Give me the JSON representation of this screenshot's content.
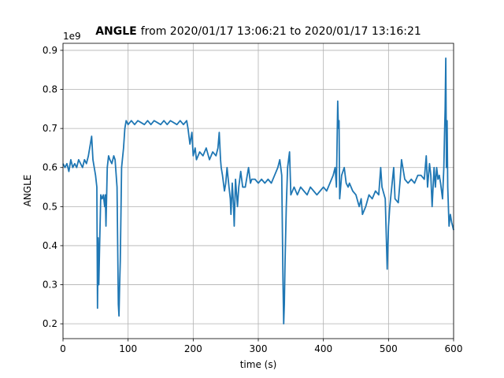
{
  "chart_data": {
    "type": "line",
    "title": {
      "bold": "ANGLE",
      "text": "from 2020/01/17 13:06:21 to 2020/01/17 13:16:21"
    },
    "offset_label": "1e9",
    "xlabel": "time (s)",
    "ylabel": "ANGLE",
    "xlim": [
      0,
      600
    ],
    "xticks": [
      0,
      100,
      200,
      300,
      400,
      500,
      600
    ],
    "ylim": [
      0.162,
      0.918
    ],
    "yticks": [
      0.2,
      0.3,
      0.4,
      0.5,
      0.6,
      0.7,
      0.8,
      0.9
    ],
    "grid": true,
    "x": [
      0,
      3,
      6,
      9,
      12,
      15,
      18,
      21,
      24,
      27,
      30,
      33,
      36,
      39,
      42,
      44,
      46,
      48,
      50,
      52,
      53,
      54,
      55,
      56,
      58,
      60,
      62,
      64,
      65,
      66,
      68,
      70,
      72,
      75,
      78,
      80,
      83,
      85,
      86,
      87,
      88,
      90,
      93,
      95,
      97,
      100,
      105,
      110,
      115,
      120,
      125,
      130,
      135,
      140,
      145,
      150,
      155,
      160,
      165,
      170,
      175,
      180,
      185,
      190,
      192,
      195,
      198,
      200,
      203,
      205,
      210,
      215,
      220,
      225,
      230,
      235,
      238,
      240,
      242,
      243,
      245,
      248,
      250,
      252,
      255,
      257,
      258,
      260,
      262,
      263,
      265,
      268,
      270,
      273,
      276,
      280,
      285,
      288,
      290,
      295,
      300,
      305,
      310,
      315,
      320,
      325,
      330,
      333,
      336,
      338,
      339,
      340,
      341,
      343,
      345,
      348,
      350,
      355,
      360,
      365,
      370,
      375,
      380,
      385,
      390,
      395,
      400,
      405,
      410,
      415,
      418,
      420,
      422,
      423,
      424,
      425,
      428,
      432,
      435,
      438,
      440,
      445,
      450,
      455,
      458,
      460,
      465,
      470,
      475,
      480,
      485,
      488,
      490,
      495,
      497,
      498,
      500,
      502,
      505,
      508,
      510,
      515,
      518,
      520,
      525,
      530,
      535,
      540,
      545,
      550,
      555,
      558,
      560,
      563,
      565,
      567,
      570,
      572,
      574,
      576,
      578,
      580,
      583,
      585,
      586,
      587,
      588,
      589,
      590,
      591,
      593,
      595,
      597,
      600
    ],
    "series": [
      {
        "name": "ANGLE",
        "color": "#1f77b4",
        "values": [
          0.61,
          0.6,
          0.61,
          0.59,
          0.62,
          0.6,
          0.61,
          0.6,
          0.62,
          0.61,
          0.6,
          0.62,
          0.61,
          0.63,
          0.66,
          0.68,
          0.62,
          0.6,
          0.58,
          0.55,
          0.24,
          0.42,
          0.3,
          0.38,
          0.53,
          0.52,
          0.53,
          0.5,
          0.53,
          0.45,
          0.6,
          0.63,
          0.62,
          0.61,
          0.63,
          0.62,
          0.55,
          0.25,
          0.22,
          0.3,
          0.36,
          0.6,
          0.65,
          0.7,
          0.72,
          0.71,
          0.72,
          0.71,
          0.72,
          0.715,
          0.71,
          0.72,
          0.71,
          0.72,
          0.715,
          0.71,
          0.72,
          0.71,
          0.72,
          0.715,
          0.71,
          0.72,
          0.71,
          0.72,
          0.7,
          0.66,
          0.69,
          0.63,
          0.65,
          0.62,
          0.64,
          0.63,
          0.65,
          0.62,
          0.64,
          0.63,
          0.65,
          0.69,
          0.62,
          0.6,
          0.58,
          0.54,
          0.56,
          0.6,
          0.55,
          0.52,
          0.48,
          0.56,
          0.5,
          0.45,
          0.57,
          0.5,
          0.55,
          0.59,
          0.55,
          0.55,
          0.6,
          0.56,
          0.57,
          0.57,
          0.56,
          0.57,
          0.56,
          0.57,
          0.56,
          0.58,
          0.6,
          0.62,
          0.58,
          0.3,
          0.2,
          0.25,
          0.35,
          0.5,
          0.6,
          0.64,
          0.53,
          0.55,
          0.53,
          0.55,
          0.54,
          0.53,
          0.55,
          0.54,
          0.53,
          0.54,
          0.55,
          0.54,
          0.56,
          0.58,
          0.6,
          0.55,
          0.77,
          0.7,
          0.72,
          0.52,
          0.58,
          0.6,
          0.56,
          0.55,
          0.56,
          0.54,
          0.53,
          0.5,
          0.52,
          0.48,
          0.5,
          0.53,
          0.52,
          0.54,
          0.53,
          0.6,
          0.55,
          0.52,
          0.4,
          0.34,
          0.45,
          0.5,
          0.55,
          0.6,
          0.52,
          0.51,
          0.57,
          0.62,
          0.57,
          0.56,
          0.57,
          0.56,
          0.58,
          0.58,
          0.57,
          0.63,
          0.55,
          0.61,
          0.58,
          0.5,
          0.6,
          0.55,
          0.6,
          0.57,
          0.58,
          0.56,
          0.52,
          0.6,
          0.68,
          0.75,
          0.88,
          0.6,
          0.72,
          0.55,
          0.45,
          0.48,
          0.46,
          0.44
        ]
      }
    ]
  }
}
